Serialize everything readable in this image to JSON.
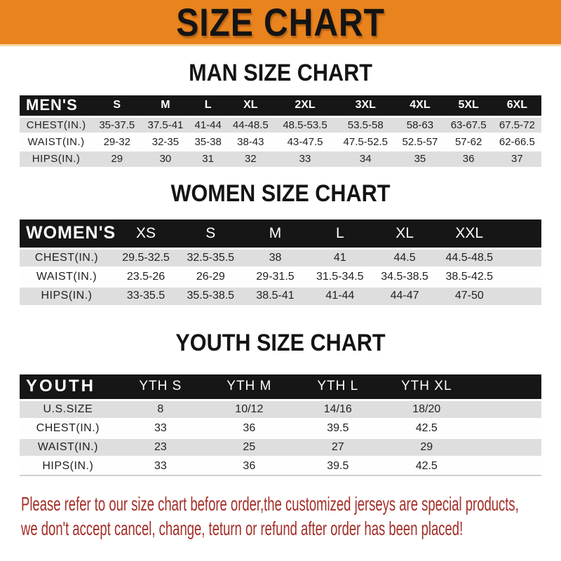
{
  "banner": {
    "title": "SIZE CHART",
    "bg_color": "#E8831E",
    "text_color": "#141414"
  },
  "colors": {
    "header_bar": "#161616",
    "header_text": "#FFFFFF",
    "row_shade": "#DEDEDE",
    "row_plain": "#FFFFFF",
    "notice_red": "#A32E27"
  },
  "chart_data": [
    {
      "type": "table",
      "title": "MAN SIZE CHART",
      "corner_label": "MEN'S",
      "columns": [
        "S",
        "M",
        "L",
        "XL",
        "2XL",
        "3XL",
        "4XL",
        "5XL",
        "6XL"
      ],
      "rows": [
        {
          "label": "CHEST(IN.)",
          "values": [
            "35-37.5",
            "37.5-41",
            "41-44",
            "44-48.5",
            "48.5-53.5",
            "53.5-58",
            "58-63",
            "63-67.5",
            "67.5-72"
          ]
        },
        {
          "label": "WAIST(IN.)",
          "values": [
            "29-32",
            "32-35",
            "35-38",
            "38-43",
            "43-47.5",
            "47.5-52.5",
            "52.5-57",
            "57-62",
            "62-66.5"
          ]
        },
        {
          "label": "HIPS(IN.)",
          "values": [
            "29",
            "30",
            "31",
            "32",
            "33",
            "34",
            "35",
            "36",
            "37"
          ]
        }
      ]
    },
    {
      "type": "table",
      "title": "WOMEN SIZE CHART",
      "corner_label": "WOMEN'S",
      "columns": [
        "XS",
        "S",
        "M",
        "L",
        "XL",
        "XXL"
      ],
      "rows": [
        {
          "label": "CHEST(IN.)",
          "values": [
            "29.5-32.5",
            "32.5-35.5",
            "38",
            "41",
            "44.5",
            "44.5-48.5"
          ]
        },
        {
          "label": "WAIST(IN.)",
          "values": [
            "23.5-26",
            "26-29",
            "29-31.5",
            "31.5-34.5",
            "34.5-38.5",
            "38.5-42.5"
          ]
        },
        {
          "label": "HIPS(IN.)",
          "values": [
            "33-35.5",
            "35.5-38.5",
            "38.5-41",
            "41-44",
            "44-47",
            "47-50"
          ]
        }
      ]
    },
    {
      "type": "table",
      "title": "YOUTH SIZE CHART",
      "corner_label": "YOUTH",
      "columns": [
        "YTH S",
        "YTH M",
        "YTH L",
        "YTH XL"
      ],
      "rows": [
        {
          "label": "U.S.SIZE",
          "values": [
            "8",
            "10/12",
            "14/16",
            "18/20"
          ]
        },
        {
          "label": "CHEST(IN.)",
          "values": [
            "33",
            "36",
            "39.5",
            "42.5"
          ]
        },
        {
          "label": "WAIST(IN.)",
          "values": [
            "23",
            "25",
            "27",
            "29"
          ]
        },
        {
          "label": "HIPS(IN.)",
          "values": [
            "33",
            "36",
            "39.5",
            "42.5"
          ]
        }
      ]
    }
  ],
  "notice": {
    "line1": "Please refer to our size chart before order,the customized jerseys are special products,",
    "line2": "we don't accept cancel, change, teturn or refund after order has been placed!"
  }
}
